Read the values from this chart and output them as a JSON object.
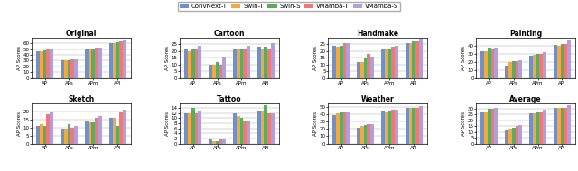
{
  "legend_labels": [
    "ConvNext-T",
    "Swin-T",
    "Swin-S",
    "VMamba-T",
    "VMamba-S"
  ],
  "colors": [
    "#7090c8",
    "#f5a742",
    "#5dac5d",
    "#f07878",
    "#b39ddb"
  ],
  "x_labels": [
    "AP",
    "APs",
    "APm",
    "APl"
  ],
  "subplots": [
    {
      "title": "Original",
      "ylim": [
        0,
        70
      ],
      "yticks": [
        0,
        10,
        20,
        30,
        40,
        50,
        60
      ],
      "data": [
        [
          47,
          30,
          50,
          60
        ],
        [
          47,
          30,
          50,
          60
        ],
        [
          48,
          31,
          51,
          62
        ],
        [
          50,
          32,
          52,
          63
        ],
        [
          50,
          33,
          53,
          65
        ]
      ]
    },
    {
      "title": "Cartoon",
      "ylim": [
        0,
        30
      ],
      "yticks": [
        0,
        5,
        10,
        15,
        20,
        25
      ],
      "data": [
        [
          21,
          10,
          22,
          23
        ],
        [
          20,
          10,
          21,
          21
        ],
        [
          22,
          12,
          22,
          23
        ],
        [
          22,
          10,
          22,
          22
        ],
        [
          24,
          16,
          24,
          26
        ]
      ]
    },
    {
      "title": "Handmake",
      "ylim": [
        0,
        30
      ],
      "yticks": [
        0,
        5,
        10,
        15,
        20,
        25
      ],
      "data": [
        [
          24,
          12,
          22,
          26
        ],
        [
          23,
          12,
          21,
          26
        ],
        [
          24,
          15,
          22,
          27
        ],
        [
          26,
          18,
          23,
          27
        ],
        [
          26,
          16,
          24,
          29
        ]
      ]
    },
    {
      "title": "Painting",
      "ylim": [
        0,
        50
      ],
      "yticks": [
        0,
        10,
        20,
        30,
        40
      ],
      "data": [
        [
          33,
          15,
          28,
          41
        ],
        [
          33,
          20,
          29,
          40
        ],
        [
          37,
          21,
          30,
          42
        ],
        [
          36,
          21,
          30,
          42
        ],
        [
          38,
          22,
          32,
          46
        ]
      ]
    },
    {
      "title": "Sketch",
      "ylim": [
        0,
        25
      ],
      "yticks": [
        0,
        5,
        10,
        15,
        20
      ],
      "data": [
        [
          11,
          9,
          14,
          16
        ],
        [
          12,
          9,
          13,
          16
        ],
        [
          11,
          12,
          13,
          11
        ],
        [
          18,
          10,
          16,
          19
        ],
        [
          19,
          11,
          17,
          21
        ]
      ]
    },
    {
      "title": "Tattoo",
      "ylim": [
        0,
        16
      ],
      "yticks": [
        0,
        2,
        4,
        6,
        8,
        10,
        12,
        14
      ],
      "data": [
        [
          12,
          2,
          12,
          13
        ],
        [
          12,
          1,
          11,
          13
        ],
        [
          14,
          1,
          10,
          15
        ],
        [
          12,
          2,
          9,
          12
        ],
        [
          13,
          2,
          9,
          12
        ]
      ]
    },
    {
      "title": "Weather",
      "ylim": [
        0,
        55
      ],
      "yticks": [
        0,
        10,
        20,
        30,
        40,
        50
      ],
      "data": [
        [
          39,
          22,
          45,
          48
        ],
        [
          41,
          24,
          44,
          48
        ],
        [
          42,
          25,
          45,
          48
        ],
        [
          42,
          26,
          46,
          49
        ],
        [
          43,
          27,
          46,
          51
        ]
      ]
    },
    {
      "title": "Average",
      "ylim": [
        0,
        35
      ],
      "yticks": [
        0,
        5,
        10,
        15,
        20,
        25,
        30
      ],
      "data": [
        [
          27,
          11,
          26,
          31
        ],
        [
          28,
          13,
          26,
          31
        ],
        [
          30,
          14,
          27,
          31
        ],
        [
          30,
          15,
          28,
          31
        ],
        [
          31,
          16,
          29,
          33
        ]
      ]
    }
  ]
}
